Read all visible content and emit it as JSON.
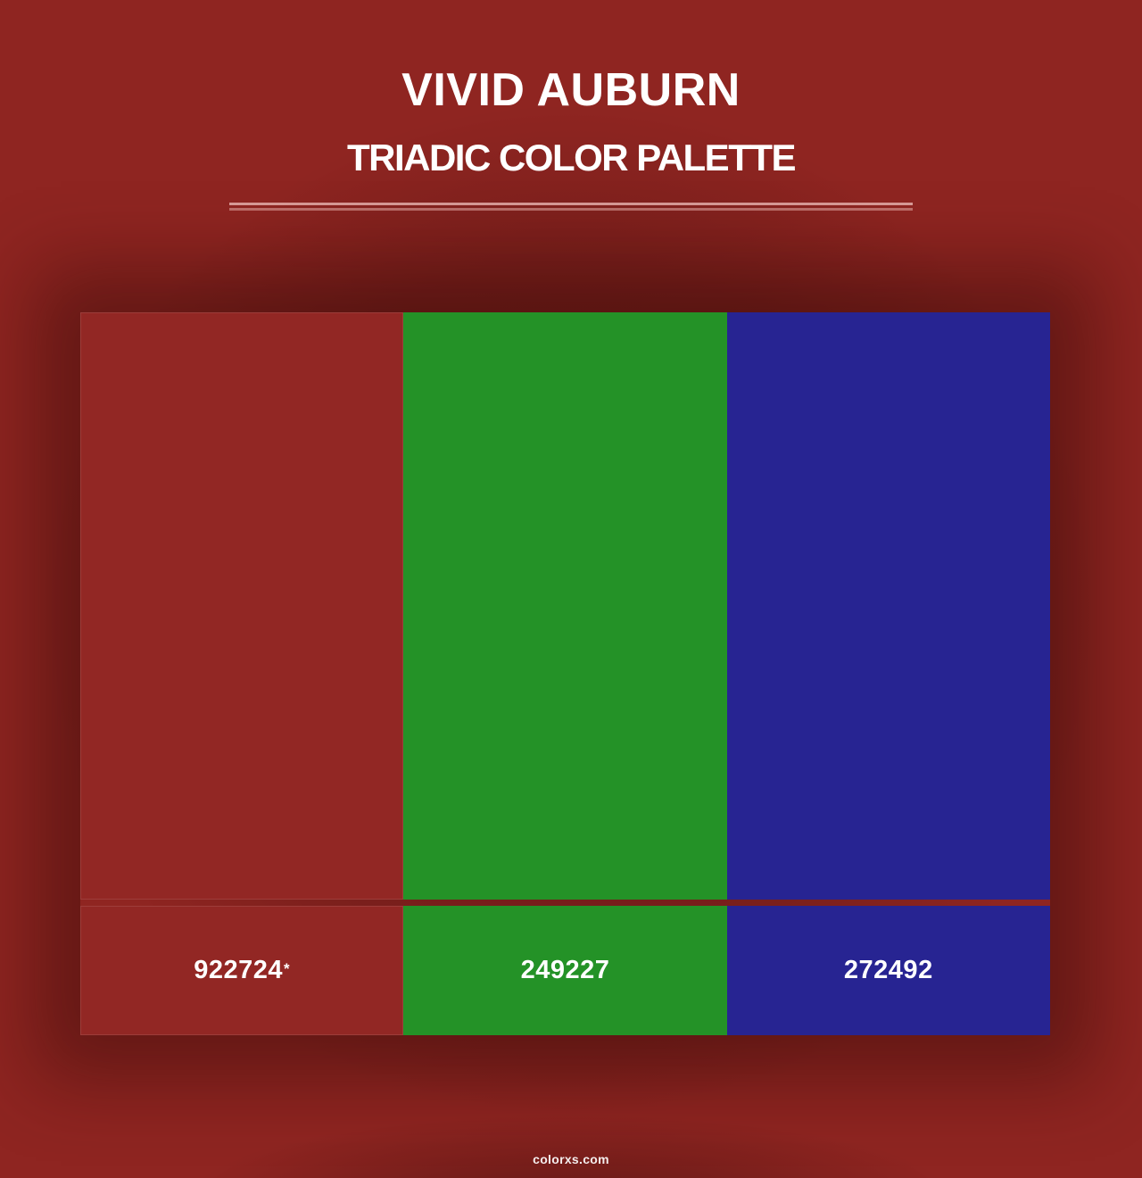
{
  "page": {
    "title": "VIVID AUBURN",
    "subtitle": "TRIADIC COLOR PALETTE",
    "background_color": "#8F2521",
    "footer": "colorxs.com"
  },
  "palette": {
    "swatches": [
      {
        "hex": "#922724",
        "label": "922724",
        "marker": "*"
      },
      {
        "hex": "#249227",
        "label": "249227"
      },
      {
        "hex": "#272492",
        "label": "272492"
      }
    ]
  }
}
